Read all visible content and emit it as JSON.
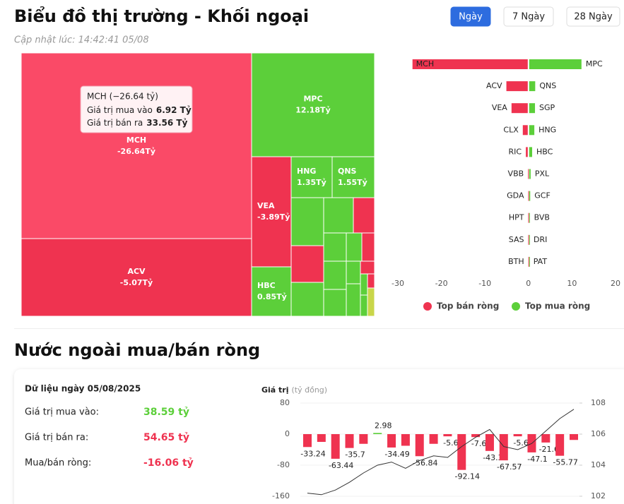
{
  "header": {
    "title": "Biểu đồ thị trường - Khối ngoại",
    "updated": "Cập nhật lúc: 14:42:41 05/08",
    "tabs": [
      "Ngày",
      "7 Ngày",
      "28 Ngày"
    ]
  },
  "treemap": {
    "cells": [
      {
        "label": "MCH",
        "value": -26.64,
        "value_label": "-26.64Tỷ"
      },
      {
        "label": "ACV",
        "value": -5.07,
        "value_label": "-5.07Tỷ"
      },
      {
        "label": "MPC",
        "value": 12.18,
        "value_label": "12.18Tỷ"
      },
      {
        "label": "VEA",
        "value": -3.89,
        "value_label": "-3.89Tỷ"
      },
      {
        "label": "HNG",
        "value": 1.35,
        "value_label": "1.35Tỷ"
      },
      {
        "label": "QNS",
        "value": 1.55,
        "value_label": "1.55Tỷ"
      },
      {
        "label": "HBC",
        "value": 0.85,
        "value_label": "0.85Tỷ"
      }
    ],
    "tooltip": {
      "title": "MCH (−26.64 tỷ)",
      "rows": [
        {
          "label": "Giá trị mua vào",
          "value": "6.92 Tỷ"
        },
        {
          "label": "Giá trị bán ra",
          "value": "33.56 Tỷ"
        }
      ]
    }
  },
  "net_chart": {
    "type": "bar",
    "sell": {
      "name": "Top bán ròng",
      "color": "#ef3350",
      "categories": [
        "MCH",
        "ACV",
        "VEA",
        "CLX",
        "RIC",
        "VBB",
        "GDA",
        "HPT",
        "SAS",
        "BTH"
      ],
      "values": [
        -26.64,
        -5.07,
        -3.89,
        -1.3,
        -0.6,
        -0.1,
        -0.05,
        -0.05,
        -0.05,
        -0.02
      ]
    },
    "buy": {
      "name": "Top mua ròng",
      "color": "#5ccf3a",
      "categories": [
        "MPC",
        "QNS",
        "SGP",
        "HNG",
        "HBC",
        "PXL",
        "GCF",
        "BVB",
        "DRI",
        "PAT"
      ],
      "values": [
        12.18,
        1.55,
        1.5,
        1.35,
        0.85,
        0.5,
        0.4,
        0.3,
        0.2,
        0.15
      ]
    },
    "xlim": [
      -30,
      20
    ],
    "xticks": [
      -30,
      -20,
      -10,
      0,
      10,
      20
    ]
  },
  "section_title": "Nước ngoài mua/bán ròng",
  "summary": {
    "title": "Dữ liệu ngày 05/08/2025",
    "rows": [
      {
        "label": "Giá trị mua vào:",
        "value": "38.59 tỷ"
      },
      {
        "label": "Giá trị bán ra:",
        "value": "54.65 tỷ"
      },
      {
        "label": "Mua/bán ròng:",
        "value": "-16.06 tỷ"
      }
    ]
  },
  "history_chart": {
    "type": "combo",
    "y_label": "Giá trị",
    "y_unit": "(tỷ đồng)",
    "bars": {
      "color": "#ef3350",
      "values": [
        -33.24,
        -20,
        -63.44,
        -35.7,
        -25,
        2.98,
        -34.49,
        -30,
        -56.84,
        -25,
        -5.66,
        -92.14,
        -7.65,
        -43.31,
        -67.57,
        -5.63,
        -47.1,
        -21.61,
        -55.77,
        -15
      ],
      "value_labels": [
        "-33.24",
        null,
        "-63.44",
        "-35.7",
        null,
        "2.98",
        "-34.49",
        null,
        "-56.84",
        null,
        "-5.66",
        "-92.14",
        "-7.65",
        "-43.31",
        "-67.57",
        "-5.63",
        "-47.1",
        "-21.61",
        "-55.77",
        null
      ]
    },
    "line": {
      "color": "#333",
      "axis": "y2",
      "values": [
        102.2,
        102.1,
        102.4,
        102.9,
        103.5,
        104.0,
        104.2,
        103.8,
        104.3,
        104.6,
        104.5,
        105.2,
        105.8,
        106.3,
        105.2,
        105.0,
        105.4,
        106.2,
        107.0,
        107.6
      ]
    },
    "ylim": [
      -160,
      80
    ],
    "yticks": [
      80,
      0,
      -80,
      -160
    ],
    "y2lim": [
      102,
      108
    ],
    "y2ticks": [
      108,
      106,
      104,
      102
    ]
  }
}
